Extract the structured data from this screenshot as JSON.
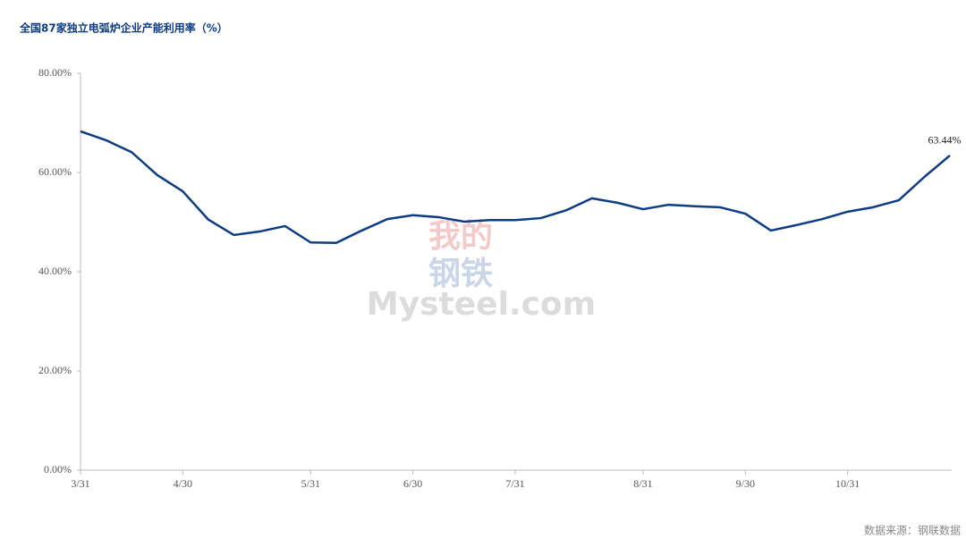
{
  "chart_data": {
    "type": "line",
    "title": "全国87家独立电弧炉企业产能利用率（%）",
    "source": "数据来源：钢联数据",
    "watermark": [
      "我的",
      "钢铁",
      "Mysteel.com"
    ],
    "categories": [
      "3/31",
      null,
      null,
      null,
      "4/30",
      null,
      null,
      null,
      null,
      "5/31",
      null,
      null,
      null,
      "6/30",
      null,
      null,
      null,
      "7/31",
      null,
      null,
      null,
      null,
      "8/31",
      null,
      null,
      null,
      "9/30",
      null,
      null,
      null,
      "10/31",
      null,
      null,
      null,
      null
    ],
    "series": [
      {
        "name": "产能利用率",
        "color": "#0d3c84",
        "values": [
          68.3,
          66.5,
          64.1,
          59.5,
          56.2,
          50.5,
          47.4,
          48.1,
          49.2,
          45.9,
          45.8,
          48.3,
          50.6,
          51.4,
          51.0,
          50.1,
          50.4,
          50.4,
          50.8,
          52.4,
          54.8,
          53.9,
          52.6,
          53.5,
          53.2,
          53.0,
          51.7,
          48.3,
          49.4,
          50.6,
          52.1,
          53.0,
          54.4,
          59.1,
          63.44
        ],
        "value_labels": [
          null,
          null,
          null,
          null,
          null,
          null,
          null,
          null,
          null,
          null,
          null,
          null,
          null,
          null,
          null,
          null,
          null,
          null,
          null,
          null,
          null,
          null,
          null,
          null,
          null,
          null,
          null,
          null,
          null,
          null,
          null,
          null,
          null,
          null,
          "63.44%"
        ]
      }
    ],
    "ylim": [
      0,
      80
    ],
    "yticks": [
      {
        "value": 0,
        "label": "0.00%"
      },
      {
        "value": 20,
        "label": "20.00%"
      },
      {
        "value": 40,
        "label": "40.00%"
      },
      {
        "value": 60,
        "label": "60.00%"
      },
      {
        "value": 80,
        "label": "80.00%"
      }
    ],
    "grid": false
  }
}
